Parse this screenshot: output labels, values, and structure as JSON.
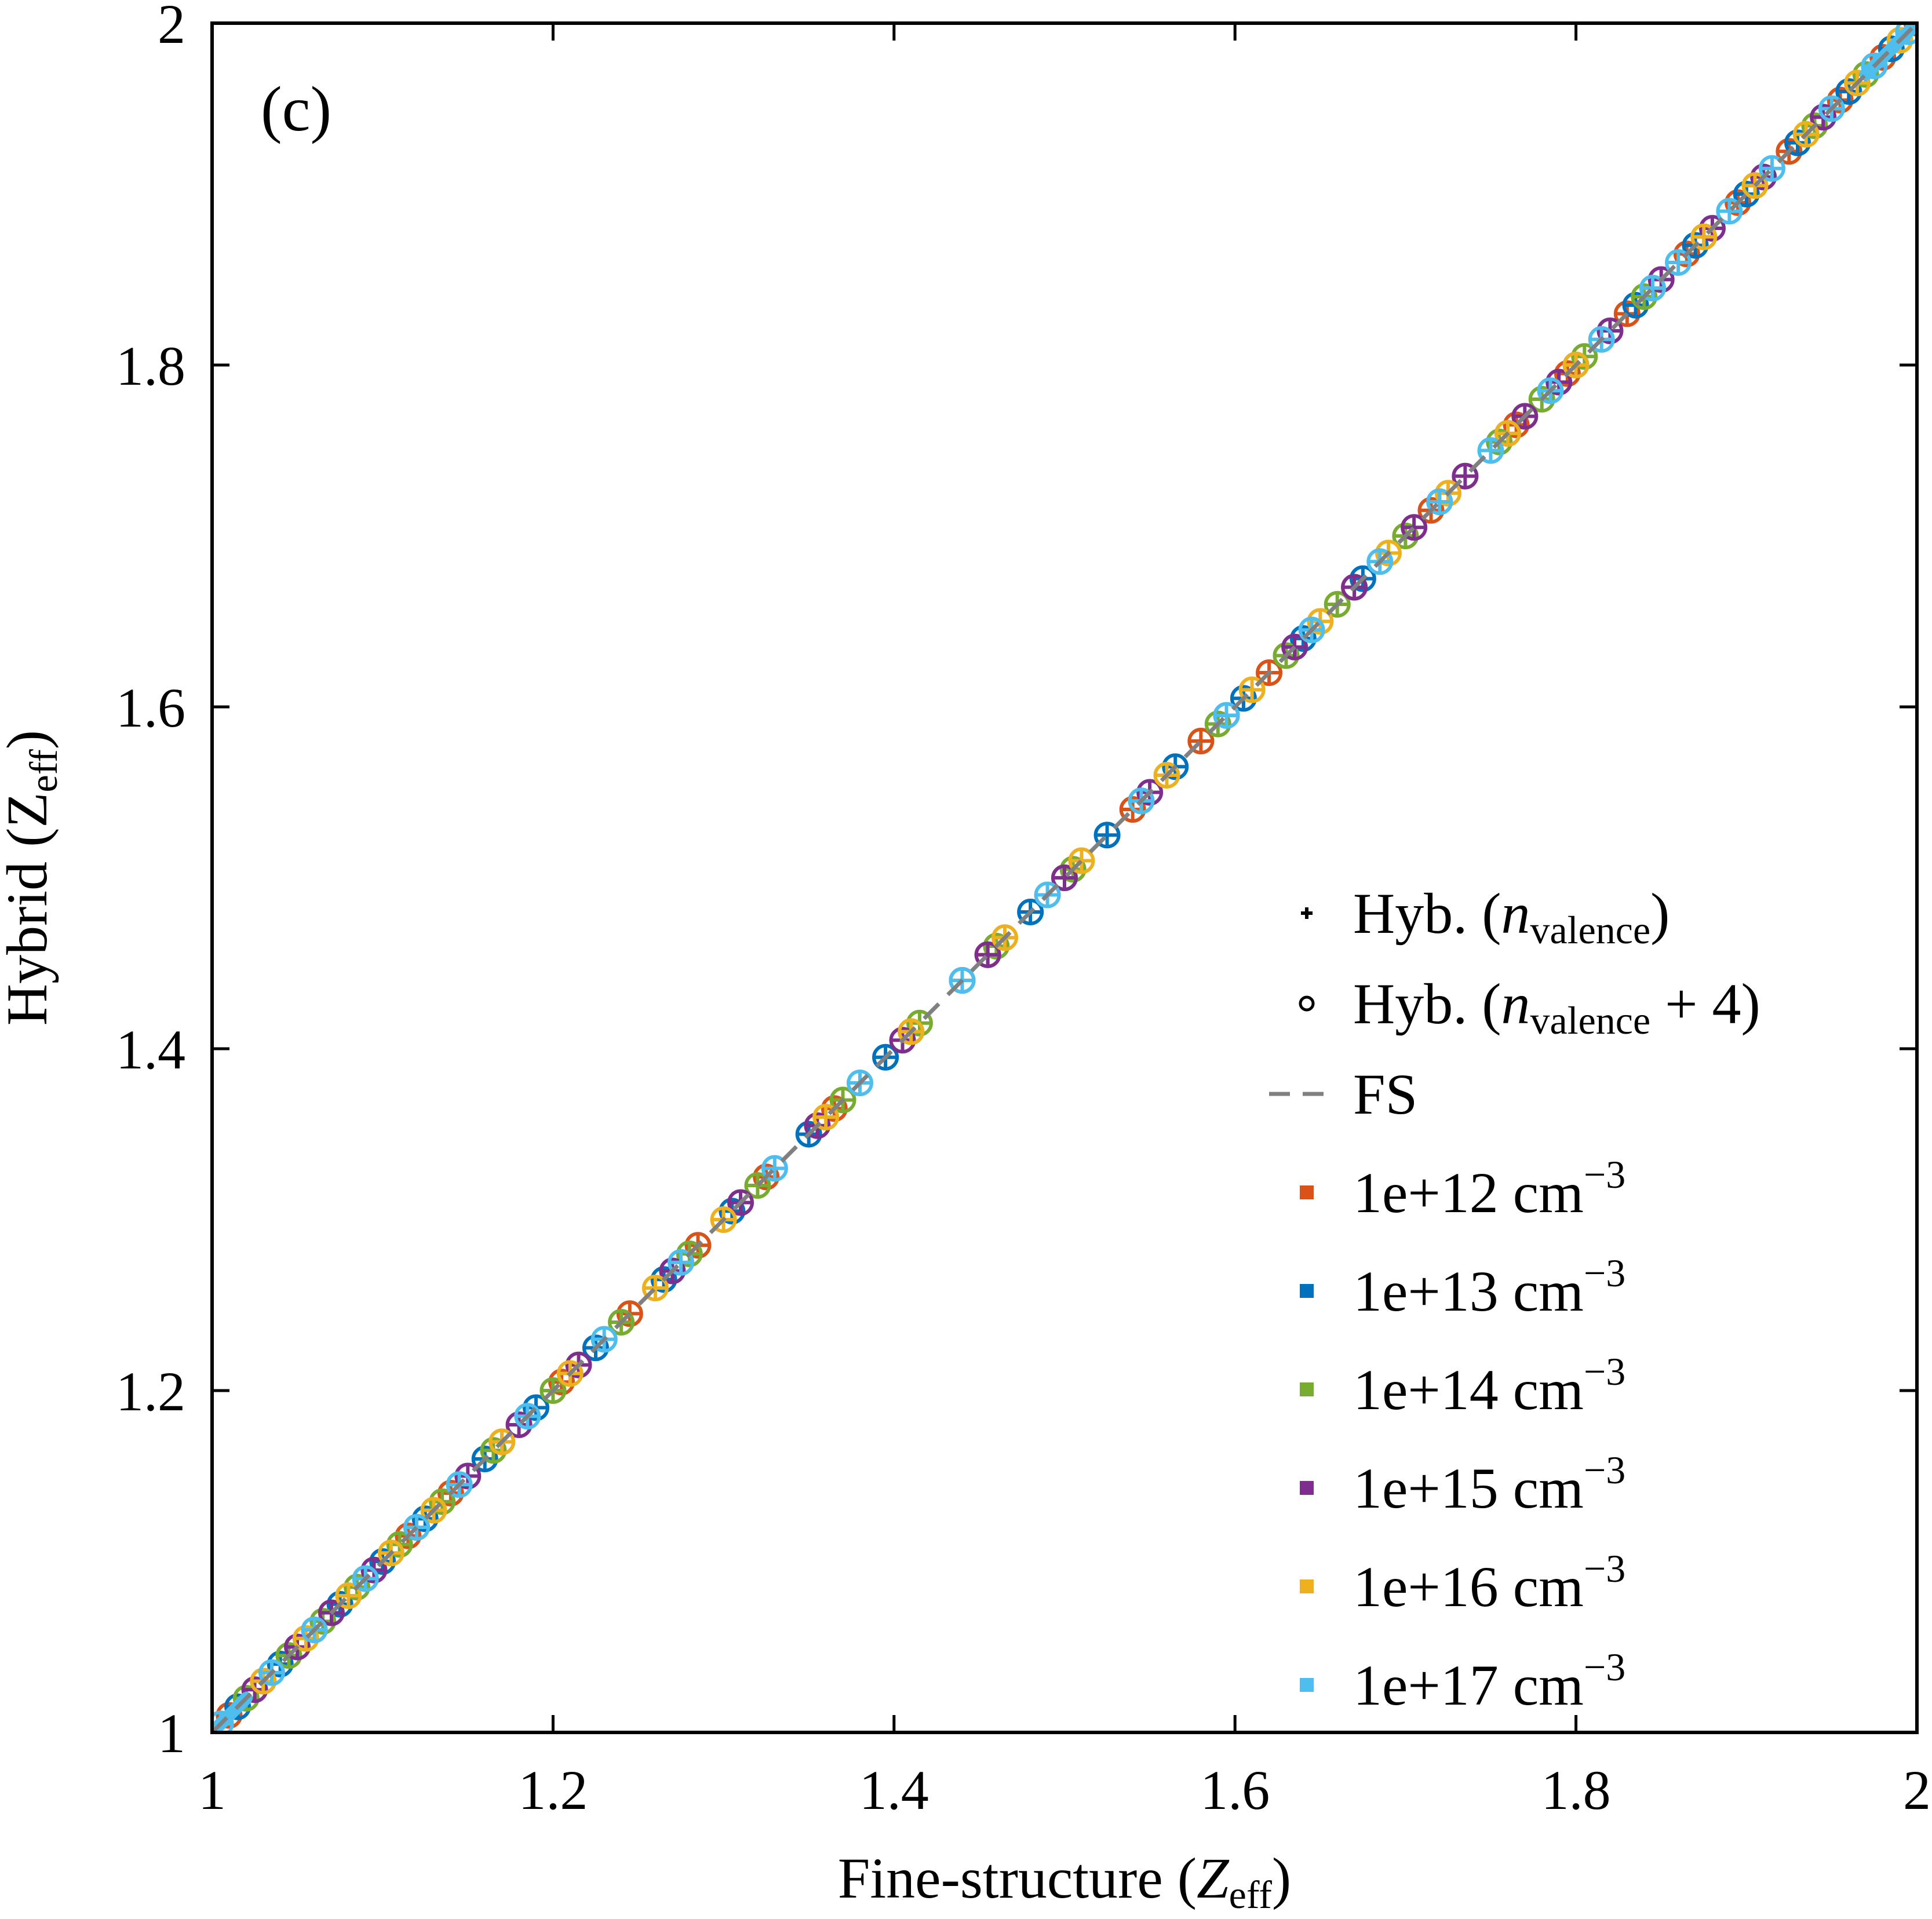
{
  "chart_data": {
    "type": "scatter",
    "panel_label": "(c)",
    "xlabel": {
      "main": "Fine-structure (",
      "var": "Z",
      "sub": "eff",
      "close": ")"
    },
    "ylabel": {
      "main": "Hybrid (",
      "var": "Z",
      "sub": "eff",
      "close": ")"
    },
    "xlim": [
      1,
      2
    ],
    "ylim": [
      1,
      2
    ],
    "xticks": [
      1,
      1.2,
      1.4,
      1.6,
      1.8,
      2
    ],
    "xtick_labels": [
      "1",
      "1.2",
      "1.4",
      "1.6",
      "1.8",
      "2"
    ],
    "yticks": [
      1,
      1.2,
      1.4,
      1.6,
      1.8,
      2
    ],
    "ytick_labels": [
      "1",
      "1.2",
      "1.4",
      "1.6",
      "1.8",
      "2"
    ],
    "grid": false,
    "legend_position": "bottom-right",
    "marker_legend": [
      {
        "marker": "plus",
        "text": "Hyb. (",
        "var": "n",
        "sub": "valence",
        "suffix": ")"
      },
      {
        "marker": "circle",
        "text": "Hyb. (",
        "var": "n",
        "sub": "valence",
        "suffix": " + 4)"
      }
    ],
    "reference_line": {
      "name": "FS",
      "style": "dashed",
      "color": "#808080",
      "x": [
        1,
        2
      ],
      "y": [
        1,
        2
      ]
    },
    "series": [
      {
        "name": "1e+12 cm",
        "sup": "−3",
        "color": "#D95319",
        "x": [
          1.01,
          1.03,
          1.06,
          1.09,
          1.115,
          1.14,
          1.17,
          1.205,
          1.245,
          1.285,
          1.325,
          1.365,
          1.41,
          1.455,
          1.5,
          1.54,
          1.58,
          1.62,
          1.67,
          1.715,
          1.765,
          1.795,
          1.83,
          1.865,
          1.895,
          1.925,
          1.955,
          1.98,
          2.0
        ]
      },
      {
        "name": "1e+13 cm",
        "sup": "−3",
        "color": "#0072BD",
        "x": [
          1.015,
          1.04,
          1.075,
          1.1,
          1.125,
          1.16,
          1.19,
          1.225,
          1.265,
          1.305,
          1.35,
          1.395,
          1.44,
          1.48,
          1.525,
          1.565,
          1.605,
          1.64,
          1.675,
          1.72,
          1.76,
          1.8,
          1.835,
          1.87,
          1.9,
          1.93,
          1.96,
          1.985
        ]
      },
      {
        "name": "1e+14 cm",
        "sup": "−3",
        "color": "#77AC30",
        "x": [
          1.02,
          1.045,
          1.065,
          1.085,
          1.11,
          1.135,
          1.165,
          1.2,
          1.24,
          1.28,
          1.32,
          1.37,
          1.415,
          1.46,
          1.505,
          1.545,
          1.59,
          1.63,
          1.66,
          1.7,
          1.755,
          1.78,
          1.805,
          1.84,
          1.875,
          1.905,
          1.94,
          1.97
        ]
      },
      {
        "name": "1e+15 cm",
        "sup": "−3",
        "color": "#7E2F8E",
        "x": [
          1.025,
          1.05,
          1.07,
          1.095,
          1.12,
          1.15,
          1.18,
          1.215,
          1.27,
          1.31,
          1.355,
          1.405,
          1.455,
          1.5,
          1.55,
          1.595,
          1.635,
          1.67,
          1.705,
          1.735,
          1.77,
          1.79,
          1.82,
          1.85,
          1.88,
          1.91,
          1.945,
          1.975
        ]
      },
      {
        "name": "1e+16 cm",
        "sup": "−3",
        "color": "#EDB120",
        "x": [
          1.03,
          1.055,
          1.08,
          1.105,
          1.13,
          1.17,
          1.21,
          1.26,
          1.3,
          1.36,
          1.41,
          1.465,
          1.51,
          1.56,
          1.61,
          1.65,
          1.69,
          1.725,
          1.76,
          1.8,
          1.845,
          1.875,
          1.905,
          1.935,
          1.965,
          1.99
        ]
      },
      {
        "name": "1e+17 cm",
        "sup": "−3",
        "color": "#4DBEEE",
        "x": [
          1.005,
          1.035,
          1.06,
          1.09,
          1.12,
          1.145,
          1.185,
          1.23,
          1.275,
          1.33,
          1.38,
          1.44,
          1.49,
          1.545,
          1.595,
          1.645,
          1.685,
          1.72,
          1.75,
          1.785,
          1.815,
          1.845,
          1.86,
          1.89,
          1.915,
          1.95,
          1.975,
          1.995
        ]
      }
    ]
  }
}
